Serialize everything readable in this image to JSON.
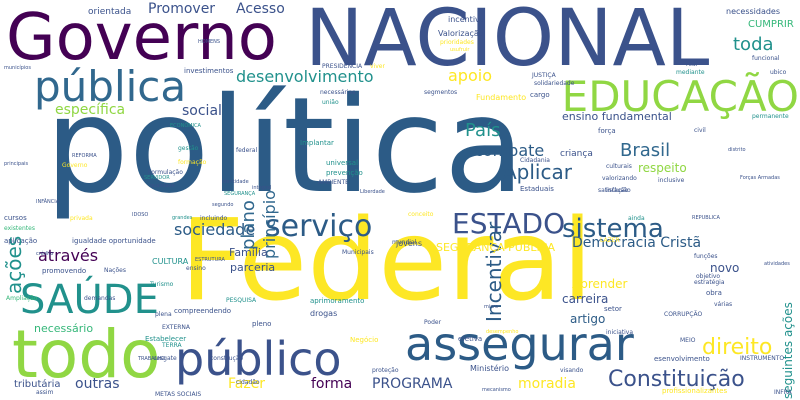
{
  "palette": {
    "purple": "#440154",
    "indigo": "#3b528b",
    "blue": "#31688e",
    "slate": "#2c5b86",
    "teal": "#21918c",
    "teal_light": "#1fa187",
    "green": "#35b779",
    "lime": "#90d743",
    "yellow": "#fde725",
    "gray": "#555555"
  },
  "words": [
    {
      "text": "política",
      "color": "slate"
    },
    {
      "text": "Federal",
      "color": "yellow"
    },
    {
      "text": "NACIONAL",
      "color": "indigo"
    },
    {
      "text": "Governo",
      "color": "purple"
    },
    {
      "text": "todo",
      "color": "lime"
    },
    {
      "text": "público",
      "color": "indigo"
    },
    {
      "text": "assegurar",
      "color": "slate"
    },
    {
      "text": "pública",
      "color": "blue"
    },
    {
      "text": "EDUCAÇÃO",
      "color": "lime"
    },
    {
      "text": "SAÚDE",
      "color": "teal"
    },
    {
      "text": "serviço",
      "color": "slate"
    },
    {
      "text": "ESTADO",
      "color": "indigo"
    },
    {
      "text": "sistema",
      "color": "slate"
    },
    {
      "text": "Constituição",
      "color": "indigo"
    },
    {
      "text": "direito",
      "color": "yellow"
    },
    {
      "text": "Incentivar",
      "color": "slate"
    },
    {
      "text": "Aplicar",
      "color": "slate"
    },
    {
      "text": "Brasil",
      "color": "blue"
    },
    {
      "text": "combate",
      "color": "slate"
    },
    {
      "text": "País",
      "color": "teal"
    },
    {
      "text": "toda",
      "color": "teal"
    },
    {
      "text": "desenvolvimento",
      "color": "teal"
    },
    {
      "text": "apoio",
      "color": "yellow"
    },
    {
      "text": "específica",
      "color": "lime"
    },
    {
      "text": "social",
      "color": "indigo"
    },
    {
      "text": "ações",
      "color": "teal"
    },
    {
      "text": "plano",
      "color": "blue"
    },
    {
      "text": "princípio",
      "color": "blue"
    },
    {
      "text": "sociedade",
      "color": "slate"
    },
    {
      "text": "através",
      "color": "purple"
    },
    {
      "text": "Democracia Cristã",
      "color": "slate"
    },
    {
      "text": "Promover",
      "color": "indigo"
    },
    {
      "text": "Acesso",
      "color": "indigo"
    },
    {
      "text": "outras",
      "color": "indigo"
    },
    {
      "text": "Fazer",
      "color": "yellow"
    },
    {
      "text": "forma",
      "color": "purple"
    },
    {
      "text": "PROGRAMA",
      "color": "indigo"
    },
    {
      "text": "moradia",
      "color": "yellow"
    },
    {
      "text": "ensino fundamental",
      "color": "indigo"
    },
    {
      "text": "Família",
      "color": "indigo"
    },
    {
      "text": "parceria",
      "color": "indigo"
    },
    {
      "text": "artigo",
      "color": "slate"
    },
    {
      "text": "carreira",
      "color": "indigo"
    },
    {
      "text": "Aprender",
      "color": "yellow"
    },
    {
      "text": "respeito",
      "color": "lime"
    },
    {
      "text": "novo",
      "color": "indigo"
    },
    {
      "text": "CUMPRIR",
      "color": "green"
    },
    {
      "text": "necessário",
      "color": "green"
    },
    {
      "text": "tributária",
      "color": "indigo"
    },
    {
      "text": "SEGURANÇA PÚBLICA",
      "color": "yellow"
    },
    {
      "text": "criança",
      "color": "indigo"
    },
    {
      "text": "orientada",
      "color": "indigo"
    },
    {
      "text": "incentivo",
      "color": "indigo"
    },
    {
      "text": "necessidades",
      "color": "indigo"
    },
    {
      "text": "Valorização",
      "color": "indigo"
    },
    {
      "text": "Fundamento",
      "color": "yellow"
    },
    {
      "text": "jovens",
      "color": "indigo"
    },
    {
      "text": "Ministério",
      "color": "indigo"
    },
    {
      "text": "Estabelecer",
      "color": "teal"
    },
    {
      "text": "compreendendo",
      "color": "indigo"
    },
    {
      "text": "aprimoramento",
      "color": "teal"
    },
    {
      "text": "drogas",
      "color": "indigo"
    },
    {
      "text": "CULTURA",
      "color": "teal"
    },
    {
      "text": "através",
      "color": "purple"
    },
    {
      "text": "investimentos",
      "color": "indigo"
    },
    {
      "text": "PRESIDENCIA",
      "color": "indigo"
    },
    {
      "text": "cursos",
      "color": "indigo"
    },
    {
      "text": "aplicação",
      "color": "indigo"
    },
    {
      "text": "igualdade oportunidade",
      "color": "indigo"
    },
    {
      "text": "promovendo",
      "color": "indigo"
    },
    {
      "text": "Nações",
      "color": "indigo"
    },
    {
      "text": "Ampliação",
      "color": "green"
    },
    {
      "text": "existentes",
      "color": "green"
    },
    {
      "text": "PESQUISA",
      "color": "teal"
    },
    {
      "text": "EXTERNA",
      "color": "indigo"
    },
    {
      "text": "TERRA",
      "color": "teal"
    },
    {
      "text": "construção",
      "color": "indigo"
    },
    {
      "text": "pleno",
      "color": "indigo"
    },
    {
      "text": "plena",
      "color": "indigo"
    },
    {
      "text": "Negócio",
      "color": "yellow"
    },
    {
      "text": "efetiva",
      "color": "indigo"
    },
    {
      "text": "setor",
      "color": "indigo"
    },
    {
      "text": "CORRUPÇÃO",
      "color": "indigo"
    },
    {
      "text": "obra",
      "color": "indigo"
    },
    {
      "text": "várias",
      "color": "indigo"
    },
    {
      "text": "seguintes ações",
      "color": "teal"
    },
    {
      "text": "valorizando",
      "color": "indigo"
    },
    {
      "text": "inclusão",
      "color": "indigo"
    },
    {
      "text": "culturais",
      "color": "indigo"
    },
    {
      "text": "inclusive",
      "color": "indigo"
    },
    {
      "text": "mundial",
      "color": "indigo"
    },
    {
      "text": "Municipais",
      "color": "indigo"
    },
    {
      "text": "universal",
      "color": "teal"
    },
    {
      "text": "prevenção",
      "color": "teal"
    },
    {
      "text": "AMBIENTE",
      "color": "indigo"
    },
    {
      "text": "segmentos",
      "color": "indigo"
    },
    {
      "text": "necessárias",
      "color": "indigo"
    },
    {
      "text": "união",
      "color": "teal"
    },
    {
      "text": "Implantar",
      "color": "teal"
    },
    {
      "text": "Estaduais",
      "color": "indigo"
    },
    {
      "text": "Cidadania",
      "color": "indigo"
    },
    {
      "text": "JUSTIÇA",
      "color": "indigo"
    },
    {
      "text": "solidariedade",
      "color": "indigo"
    },
    {
      "text": "cargo",
      "color": "indigo"
    },
    {
      "text": "força",
      "color": "indigo"
    },
    {
      "text": "civil",
      "color": "indigo"
    },
    {
      "text": "REFORMA",
      "color": "indigo"
    },
    {
      "text": "INFÂNCIA",
      "color": "indigo"
    },
    {
      "text": "Formulação",
      "color": "indigo"
    },
    {
      "text": "HOMENS",
      "color": "indigo"
    },
    {
      "text": "SERVIDOR",
      "color": "teal"
    },
    {
      "text": "qualidade",
      "color": "indigo"
    },
    {
      "text": "SEGURANÇA",
      "color": "teal"
    },
    {
      "text": "identidade",
      "color": "indigo"
    },
    {
      "text": "integral",
      "color": "indigo"
    },
    {
      "text": "segundo",
      "color": "indigo"
    },
    {
      "text": "incluindo",
      "color": "indigo"
    },
    {
      "text": "IDOSO",
      "color": "indigo"
    },
    {
      "text": "privada",
      "color": "yellow"
    },
    {
      "text": "conceito",
      "color": "yellow"
    },
    {
      "text": "REPUBLICA",
      "color": "indigo"
    },
    {
      "text": "distrito",
      "color": "indigo"
    },
    {
      "text": "atividades",
      "color": "indigo"
    },
    {
      "text": "funções",
      "color": "indigo"
    },
    {
      "text": "estratégia",
      "color": "indigo"
    },
    {
      "text": "desempenho",
      "color": "yellow"
    },
    {
      "text": "Poder",
      "color": "indigo"
    },
    {
      "text": "visando",
      "color": "indigo"
    },
    {
      "text": "proteção",
      "color": "indigo"
    },
    {
      "text": "esenvolvimento",
      "color": "indigo"
    },
    {
      "text": "profissionalizantes",
      "color": "yellow"
    },
    {
      "text": "INFRA",
      "color": "indigo"
    },
    {
      "text": "INSTRUMENTO",
      "color": "indigo"
    },
    {
      "text": "MEIO",
      "color": "indigo"
    },
    {
      "text": "iniciativa",
      "color": "indigo"
    },
    {
      "text": "satisfação",
      "color": "indigo"
    },
    {
      "text": "mediante",
      "color": "teal"
    },
    {
      "text": "funcional",
      "color": "indigo"
    },
    {
      "text": "permanente",
      "color": "teal"
    },
    {
      "text": "municípios",
      "color": "indigo"
    },
    {
      "text": "prioridades",
      "color": "yellow"
    },
    {
      "text": "usufruir",
      "color": "yellow"
    },
    {
      "text": "viver",
      "color": "yellow"
    },
    {
      "text": "ensino",
      "color": "indigo"
    },
    {
      "text": "METAS SOCIAIS",
      "color": "indigo"
    },
    {
      "text": "TRABALHO",
      "color": "indigo"
    },
    {
      "text": "resgate",
      "color": "indigo"
    },
    {
      "text": "Turismo",
      "color": "teal"
    },
    {
      "text": "demandas",
      "color": "indigo"
    },
    {
      "text": "ESTRUTURA",
      "color": "indigo"
    },
    {
      "text": "Governo",
      "color": "yellow"
    },
    {
      "text": "gestão",
      "color": "teal"
    },
    {
      "text": "formação",
      "color": "yellow"
    },
    {
      "text": "assim",
      "color": "indigo"
    },
    {
      "text": "cidadão",
      "color": "indigo"
    },
    {
      "text": "Forças Armadas",
      "color": "indigo"
    },
    {
      "text": "Liberdade",
      "color": "indigo"
    },
    {
      "text": "LAZER",
      "color": "yellow"
    },
    {
      "text": "ainda",
      "color": "teal"
    },
    {
      "text": "real",
      "color": "indigo"
    },
    {
      "text": "ubico",
      "color": "indigo"
    },
    {
      "text": "objetivo",
      "color": "indigo"
    },
    {
      "text": "micro",
      "color": "indigo"
    },
    {
      "text": "mecanismo",
      "color": "indigo"
    },
    {
      "text": "federal",
      "color": "indigo"
    },
    {
      "text": "ECONÔMICA",
      "color": "teal"
    },
    {
      "text": "grandes",
      "color": "teal"
    },
    {
      "text": "principais",
      "color": "indigo"
    },
    {
      "text": "crédito",
      "color": "indigo"
    }
  ]
}
